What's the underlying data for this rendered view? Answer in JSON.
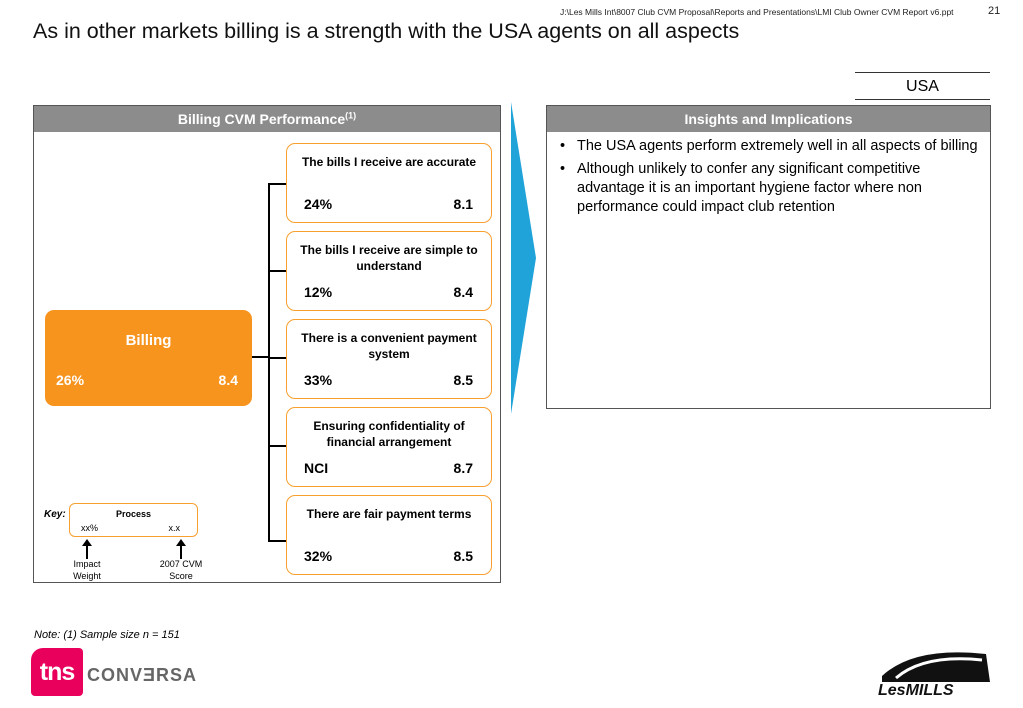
{
  "header": {
    "file_path": "J:\\Les Mills Int\\8007 Club CVM Proposal\\Reports and Presentations\\LMI Club Owner CVM Report v6.ppt",
    "page_number": "21",
    "title": "As in other markets billing is a strength with the USA agents on all aspects"
  },
  "market": "USA",
  "left_panel": {
    "heading": "Billing CVM Performance",
    "heading_sup": "(1)",
    "process": {
      "label": "Billing",
      "impact": "26%",
      "score": "8.4"
    },
    "attributes": [
      {
        "name": "The bills I receive are accurate",
        "impact": "24%",
        "score": "8.1"
      },
      {
        "name": "The bills I receive are simple to understand",
        "impact": "12%",
        "score": "8.4"
      },
      {
        "name": "There is a convenient payment system",
        "impact": "33%",
        "score": "8.5"
      },
      {
        "name": "Ensuring confidentiality of financial arrangement",
        "impact": "NCI",
        "score": "8.7"
      },
      {
        "name": "There are fair payment terms",
        "impact": "32%",
        "score": "8.5"
      }
    ],
    "key": {
      "label": "Key:",
      "box_title": "Process",
      "pct_placeholder": "xx%",
      "score_placeholder": "x.x",
      "impact_caption": "Impact Weight",
      "score_caption": "2007 CVM Score"
    }
  },
  "right_panel": {
    "heading": "Insights and Implications",
    "bullets": [
      "The USA agents perform extremely well in all aspects of billing",
      "Although unlikely to confer any significant competitive advantage it is an important hygiene factor where non performance could impact club retention"
    ]
  },
  "note": "Note: (1) Sample size n = 151",
  "logos": {
    "tns_text": "tns",
    "conversa_text": "CONVƎRSA",
    "lesmills_text": "LesMILLS"
  },
  "colors": {
    "accent_orange": "#f7941d",
    "header_grey": "#8c8c8c",
    "arrow_blue": "#1fa3d9",
    "tns_pink": "#e8005c"
  },
  "icons": {
    "divider_arrow": "chevron-arrow-icon",
    "key_arrow": "up-arrow-icon"
  }
}
